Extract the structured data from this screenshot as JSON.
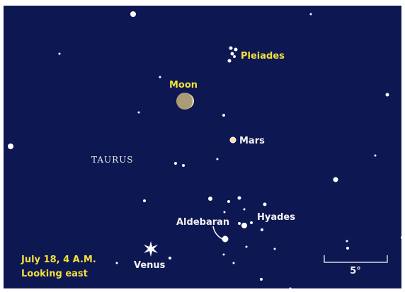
{
  "objects": {
    "pleiades": "Pleiades",
    "moon": "Moon",
    "mars": "Mars",
    "constellation": "TAURUS",
    "aldebaran": "Aldebaran",
    "hyades": "Hyades",
    "venus": "Venus"
  },
  "caption": {
    "date": "July 18, 4 A.M.",
    "direction": "Looking east"
  },
  "scale": "5°"
}
